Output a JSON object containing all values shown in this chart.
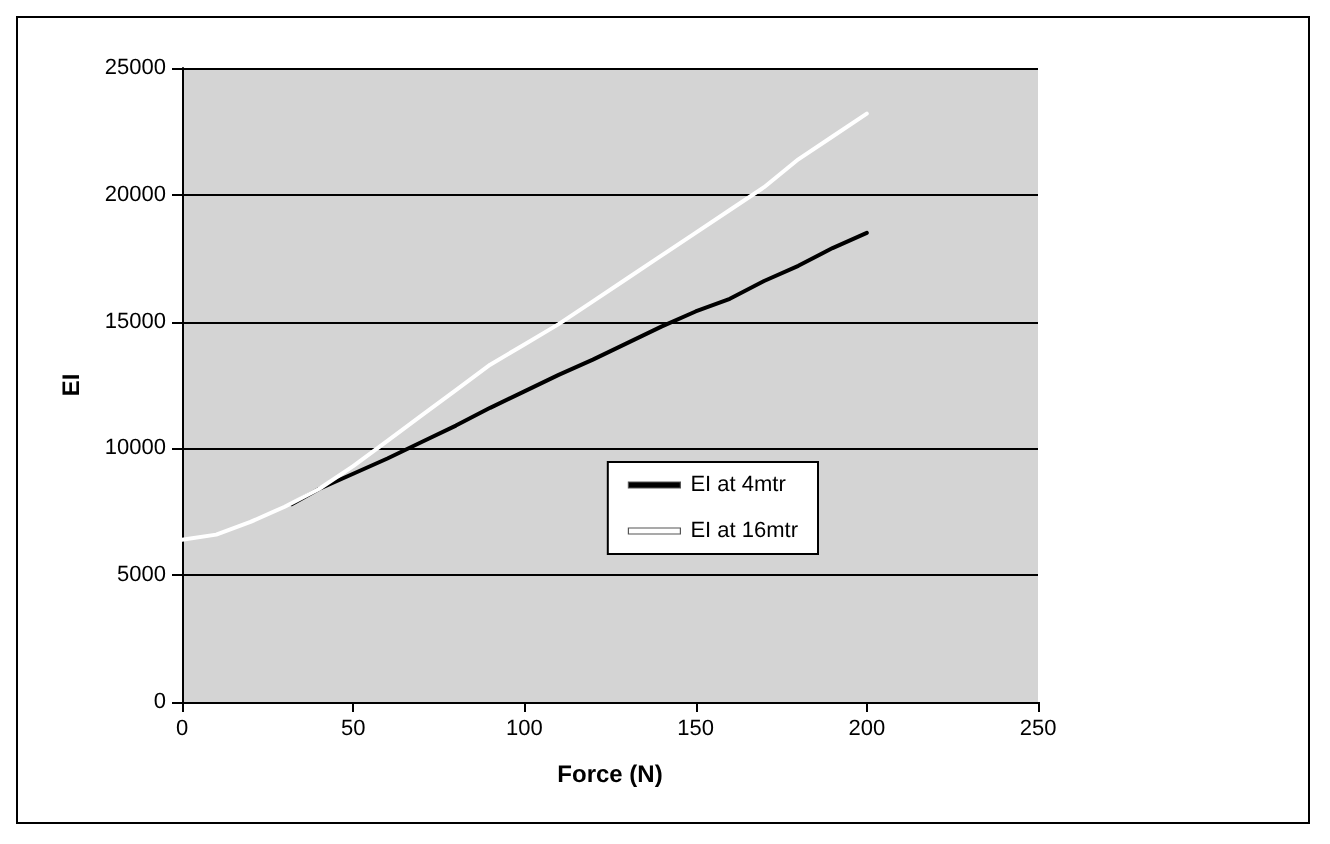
{
  "chart_data": {
    "type": "line",
    "xlabel": "Force (N)",
    "ylabel": "EI",
    "xlim": [
      0,
      250
    ],
    "xticks": [
      0,
      50,
      100,
      150,
      200,
      250
    ],
    "ylim": [
      0,
      25000
    ],
    "yticks": [
      0,
      5000,
      10000,
      15000,
      20000,
      25000
    ],
    "grid": "y",
    "legend": "right",
    "marker": "none",
    "line_style": "solid",
    "series": [
      {
        "name": "EI at 4mtr",
        "color": "#000000",
        "x": [
          32,
          40,
          50,
          60,
          70,
          80,
          90,
          100,
          110,
          120,
          130,
          140,
          150,
          160,
          170,
          180,
          190,
          200
        ],
        "values": [
          7800,
          8400,
          9000,
          9600,
          10250,
          10900,
          11600,
          12250,
          12900,
          13500,
          14150,
          14800,
          15400,
          15900,
          16600,
          17200,
          17900,
          18500
        ]
      },
      {
        "name": "EI at 16mtr",
        "color": "#ffffff",
        "x": [
          0,
          10,
          20,
          30,
          40,
          50,
          60,
          70,
          80,
          90,
          100,
          110,
          120,
          130,
          140,
          150,
          160,
          170,
          180,
          190,
          200
        ],
        "values": [
          6400,
          6600,
          7100,
          7700,
          8400,
          9300,
          10300,
          11300,
          12300,
          13300,
          14100,
          14900,
          15800,
          16700,
          17600,
          18500,
          19400,
          20300,
          21400,
          22300,
          23200
        ]
      }
    ]
  }
}
